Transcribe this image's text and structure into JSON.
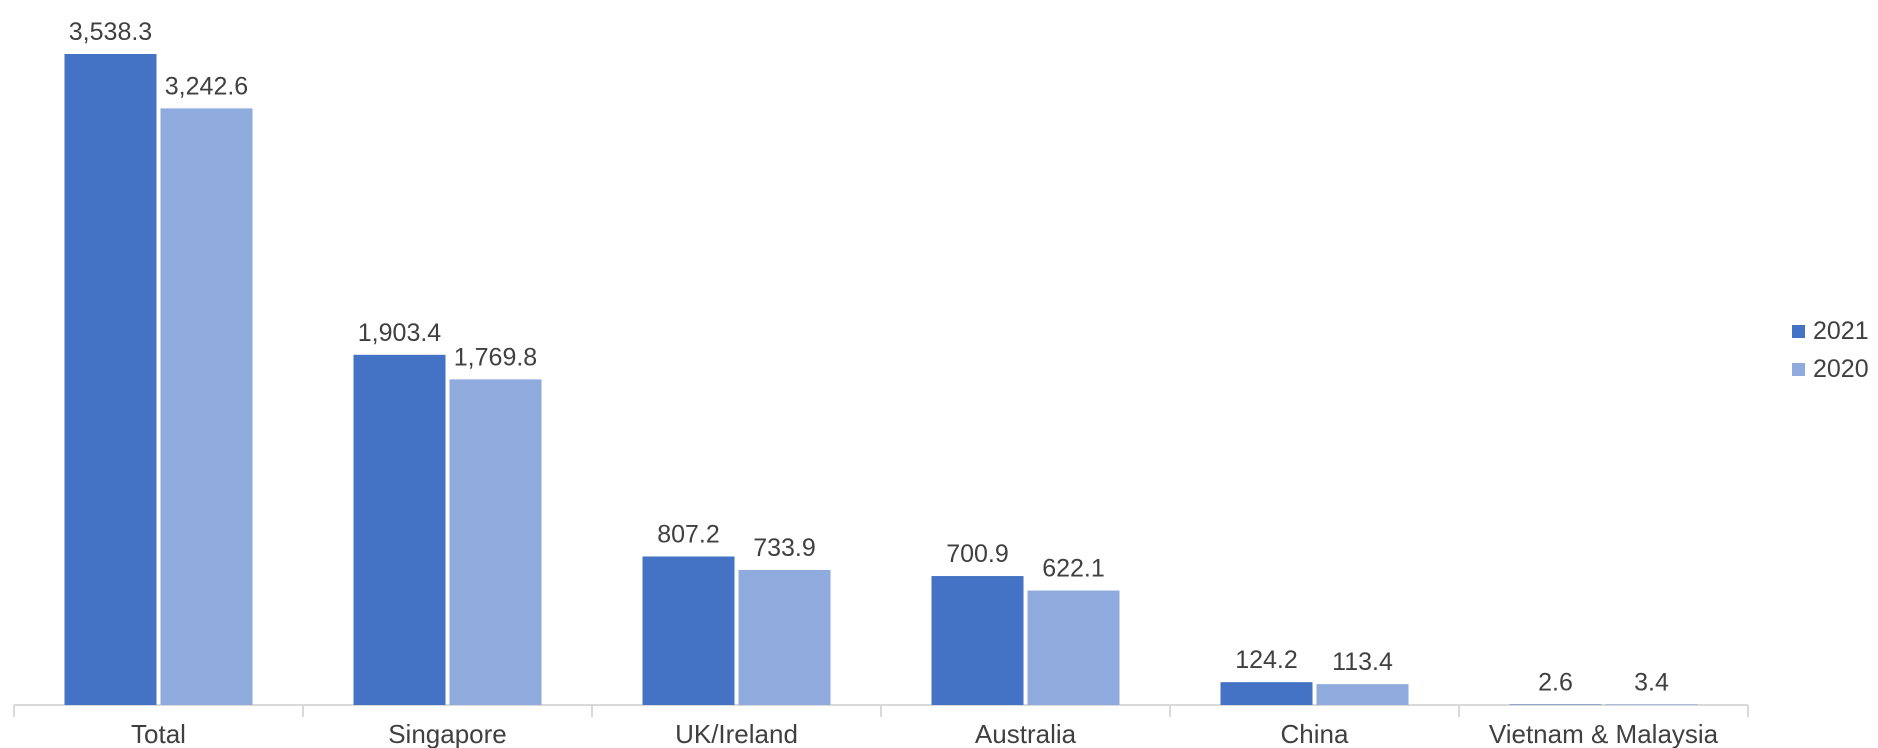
{
  "chart_data": {
    "type": "bar",
    "title": "",
    "xlabel": "",
    "ylabel": "",
    "categories": [
      "Total",
      "Singapore",
      "UK/Ireland",
      "Australia",
      "China",
      "Vietnam & Malaysia"
    ],
    "series": [
      {
        "name": "2021",
        "color": "#4472C4",
        "values": [
          3538.3,
          1903.4,
          807.2,
          700.9,
          124.2,
          2.6
        ],
        "labels": [
          "3,538.3",
          "1,903.4",
          "807.2",
          "700.9",
          "124.2",
          "2.6"
        ]
      },
      {
        "name": "2020",
        "color": "#8FAADC",
        "values": [
          3242.6,
          1769.8,
          733.9,
          622.1,
          113.4,
          3.4
        ],
        "labels": [
          "3,242.6",
          "1,769.8",
          "733.9",
          "622.1",
          "113.4",
          "3.4"
        ]
      }
    ],
    "ylim": [
      0,
      3538.3
    ],
    "grid": false,
    "legend_position": "right"
  }
}
